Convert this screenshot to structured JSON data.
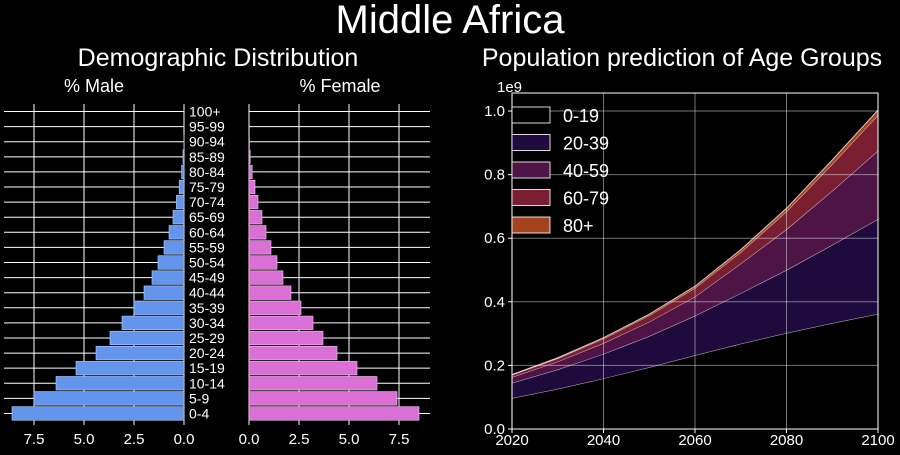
{
  "figure": {
    "title": "Middle Africa"
  },
  "colors": {
    "male": "#6495ED",
    "female": "#DA70D6",
    "grid": "#ffffff",
    "background": "#000000"
  },
  "chart_data": [
    {
      "type": "bar",
      "orientation": "horizontal",
      "title": "Demographic Distribution",
      "male_label": "% Male",
      "female_label": "% Female",
      "categories": [
        "0-4",
        "5-9",
        "10-14",
        "15-19",
        "20-24",
        "25-29",
        "30-34",
        "35-39",
        "40-44",
        "45-49",
        "50-54",
        "55-59",
        "60-64",
        "65-69",
        "70-74",
        "75-79",
        "80-84",
        "85-89",
        "90-94",
        "95-99",
        "100+"
      ],
      "series": [
        {
          "name": "% Male",
          "values": [
            8.6,
            7.5,
            6.4,
            5.4,
            4.4,
            3.7,
            3.1,
            2.5,
            2.0,
            1.6,
            1.3,
            1.0,
            0.75,
            0.55,
            0.38,
            0.24,
            0.12,
            0.05,
            0.01,
            0.0,
            0.0
          ]
        },
        {
          "name": "% Female",
          "values": [
            8.5,
            7.4,
            6.4,
            5.4,
            4.4,
            3.7,
            3.2,
            2.6,
            2.1,
            1.7,
            1.4,
            1.1,
            0.85,
            0.65,
            0.45,
            0.3,
            0.16,
            0.06,
            0.02,
            0.0,
            0.0
          ]
        }
      ],
      "male_xticks": [
        "7.5",
        "5.0",
        "2.5",
        "0.0"
      ],
      "female_xticks": [
        "0.0",
        "2.5",
        "5.0",
        "7.5"
      ],
      "xlim": [
        0,
        9
      ]
    },
    {
      "type": "area",
      "stacked": true,
      "title": "Population prediction of Age Groups",
      "y_offset_label": "1e9",
      "x": [
        2020,
        2030,
        2040,
        2050,
        2060,
        2070,
        2080,
        2090,
        2100
      ],
      "series": [
        {
          "name": "0-19",
          "color": "#000000",
          "values": [
            0.097,
            0.126,
            0.159,
            0.194,
            0.232,
            0.268,
            0.302,
            0.333,
            0.362
          ]
        },
        {
          "name": "20-39",
          "color": "#1e0a3c",
          "values": [
            0.048,
            0.061,
            0.077,
            0.098,
            0.124,
            0.159,
            0.198,
            0.246,
            0.298
          ]
        },
        {
          "name": "40-59",
          "color": "#4e1446",
          "values": [
            0.018,
            0.025,
            0.034,
            0.045,
            0.06,
            0.093,
            0.128,
            0.17,
            0.215
          ]
        },
        {
          "name": "60-79",
          "color": "#7a1e32",
          "values": [
            0.007,
            0.01,
            0.014,
            0.02,
            0.027,
            0.036,
            0.056,
            0.084,
            0.112
          ]
        },
        {
          "name": "80+",
          "color": "#a3441d",
          "values": [
            0.001,
            0.002,
            0.003,
            0.004,
            0.006,
            0.008,
            0.01,
            0.013,
            0.016
          ]
        }
      ],
      "xticks": [
        2020,
        2040,
        2060,
        2080,
        2100
      ],
      "yticks": [
        "0.0",
        "0.2",
        "0.4",
        "0.6",
        "0.8",
        "1.0"
      ],
      "xlim": [
        2020,
        2100
      ],
      "ylim": [
        0,
        1.0
      ],
      "grid": true,
      "legend_position": "top-left"
    }
  ]
}
